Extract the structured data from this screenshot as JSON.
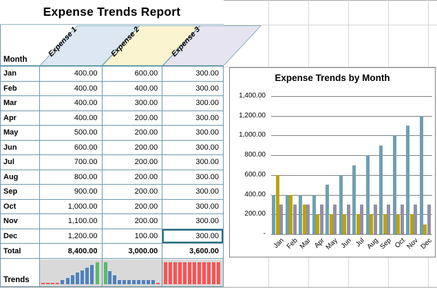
{
  "sheet": {
    "title": "Expense Trends Report",
    "table": {
      "corner_label": "Month",
      "columns": [
        {
          "label": "Expense 1",
          "fill": "#dce7f1"
        },
        {
          "label": "Expense 2",
          "fill": "#fbf4d0"
        },
        {
          "label": "Expense 3",
          "fill": "#e5e4f0"
        }
      ],
      "rows": [
        [
          "Jan",
          "400.00",
          "600.00",
          "300.00"
        ],
        [
          "Feb",
          "400.00",
          "400.00",
          "300.00"
        ],
        [
          "Mar",
          "400.00",
          "300.00",
          "300.00"
        ],
        [
          "Apr",
          "400.00",
          "200.00",
          "300.00"
        ],
        [
          "May",
          "500.00",
          "200.00",
          "300.00"
        ],
        [
          "Jun",
          "600.00",
          "200.00",
          "300.00"
        ],
        [
          "Jul",
          "700.00",
          "200.00",
          "300.00"
        ],
        [
          "Aug",
          "800.00",
          "200.00",
          "300.00"
        ],
        [
          "Sep",
          "900.00",
          "200.00",
          "300.00"
        ],
        [
          "Oct",
          "1,000.00",
          "200.00",
          "300.00"
        ],
        [
          "Nov",
          "1,100.00",
          "200.00",
          "300.00"
        ],
        [
          "Dec",
          "1,200.00",
          "100.00",
          "300.00"
        ]
      ],
      "total_row": [
        "Total",
        "8,400.00",
        "3,000.00",
        "3,600.00"
      ],
      "trends_label": "Trends",
      "selected_cell": {
        "row": "Dec",
        "column": "Expense 3"
      }
    },
    "sparklines": {
      "background": "#d9d9d9",
      "point_colors": {
        "normal": "#4e81bd",
        "high": "#5cba69",
        "low": "#fd5252"
      },
      "series": [
        {
          "column": "Expense 1",
          "heights": [
            0.06,
            0.06,
            0.06,
            0.06,
            0.18,
            0.28,
            0.4,
            0.52,
            0.64,
            0.76,
            0.88,
            1
          ],
          "types": [
            "low",
            "low",
            "low",
            "low",
            "normal",
            "normal",
            "normal",
            "normal",
            "normal",
            "normal",
            "normal",
            "high"
          ]
        },
        {
          "column": "Expense 2",
          "heights": [
            1,
            0.6,
            0.4,
            0.2,
            0.2,
            0.2,
            0.2,
            0.2,
            0.2,
            0.2,
            0.2,
            0.06
          ],
          "types": [
            "high",
            "normal",
            "normal",
            "normal",
            "normal",
            "normal",
            "normal",
            "normal",
            "normal",
            "normal",
            "normal",
            "low"
          ]
        },
        {
          "column": "Expense 3",
          "heights": [
            1,
            1,
            1,
            1,
            1,
            1,
            1,
            1,
            1,
            1,
            1,
            1
          ],
          "types": [
            "low",
            "low",
            "low",
            "low",
            "low",
            "low",
            "low",
            "low",
            "low",
            "low",
            "low",
            "low"
          ]
        }
      ]
    }
  },
  "chart_data": {
    "type": "bar",
    "title": "Expense Trends by Month",
    "categories": [
      "Jan",
      "Feb",
      "Mar",
      "Apr",
      "May",
      "Jun",
      "Jul",
      "Aug",
      "Sep",
      "Oct",
      "Nov",
      "Dec"
    ],
    "series": [
      {
        "name": "Expense 1",
        "color": "#6fa0b0",
        "values": [
          400,
          400,
          400,
          400,
          500,
          600,
          700,
          800,
          900,
          1000,
          1100,
          1200
        ]
      },
      {
        "name": "Expense 2",
        "color": "#bda303",
        "values": [
          600,
          400,
          300,
          200,
          200,
          200,
          200,
          200,
          200,
          200,
          200,
          100
        ]
      },
      {
        "name": "Expense 3",
        "color": "#938fa5",
        "values": [
          300,
          300,
          300,
          300,
          300,
          300,
          300,
          300,
          300,
          300,
          300,
          300
        ]
      }
    ],
    "ylim": [
      0,
      1400
    ],
    "ytick_labels": [
      "-",
      "200.00",
      "400.00",
      "600.00",
      "800.00",
      "1,000.00",
      "1,200.00",
      "1,400.00"
    ],
    "grid": true,
    "legend": "none",
    "xlabel": "",
    "ylabel": ""
  },
  "colors": {
    "table_border": "#6899aa",
    "selected_border": "#2e7084",
    "grid_line": "#d6d6d6",
    "chart_border": "#808080",
    "chart_grid": "#7f7f7f"
  }
}
